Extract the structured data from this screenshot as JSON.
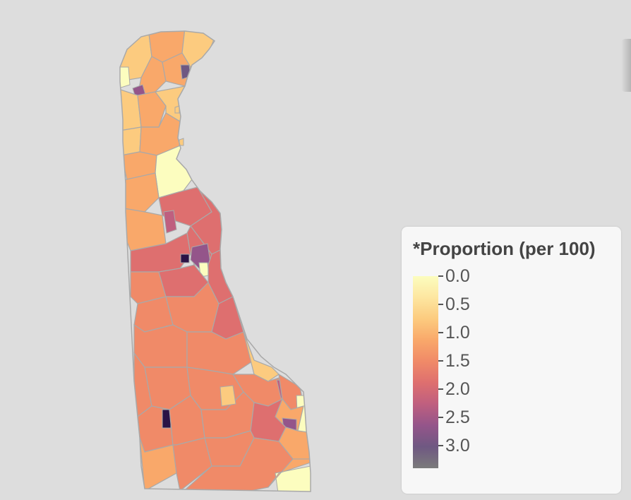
{
  "colors": {
    "background": "#dddddd",
    "boundary": "#a9a9a9",
    "ramp": [
      "#fcfdbf",
      "#fde6a0",
      "#fccb7f",
      "#f9a86a",
      "#f08a68",
      "#de6f6f",
      "#bf5f7f",
      "#94558a",
      "#6f5882",
      "#7b7b7b"
    ]
  },
  "legend": {
    "title": "*Proportion (per 100)",
    "ticks": [
      "0.0",
      "0.5",
      "1.0",
      "1.5",
      "2.0",
      "2.5",
      "3.0"
    ]
  }
}
